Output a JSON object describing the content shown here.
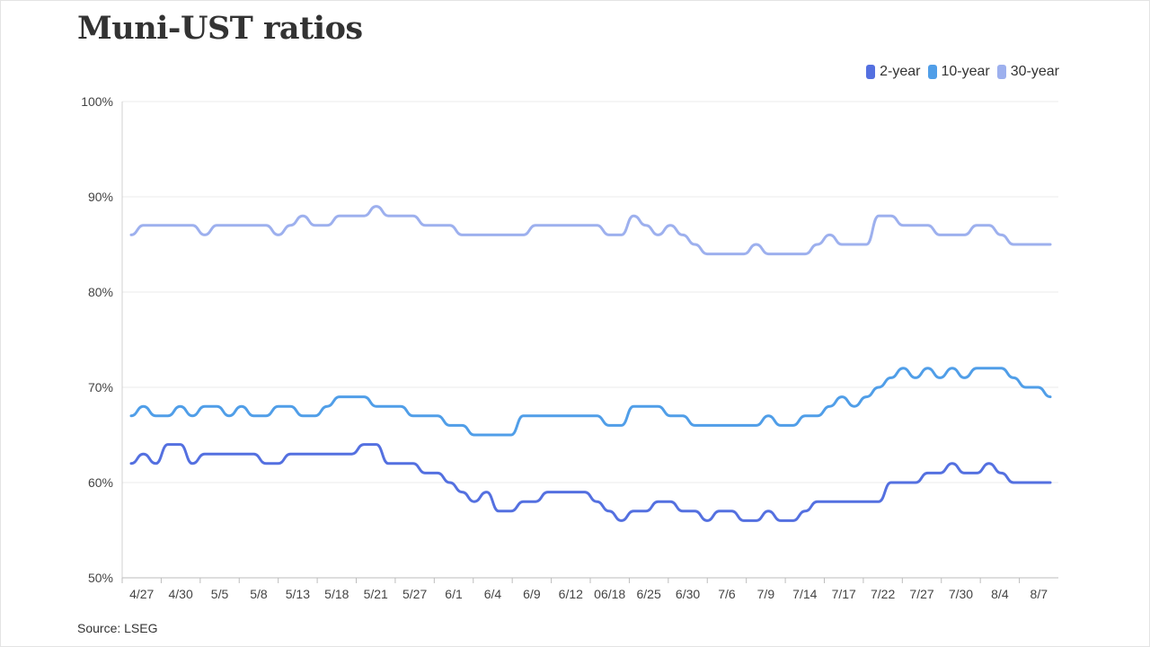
{
  "title": "Muni-UST ratios",
  "source": "Source: LSEG",
  "legend": [
    {
      "label": "2-year",
      "color": "#5470e0"
    },
    {
      "label": "10-year",
      "color": "#509ee8"
    },
    {
      "label": "30-year",
      "color": "#9db0ee"
    }
  ],
  "chart_data": {
    "type": "line",
    "grid": true,
    "legend_position": "top-right",
    "ylim": [
      50,
      100
    ],
    "y_ticks": [
      "100%",
      "90%",
      "80%",
      "70%",
      "60%",
      "50%"
    ],
    "x_tick_labels": [
      "4/27",
      "4/30",
      "5/5",
      "5/8",
      "5/13",
      "5/18",
      "5/21",
      "5/27",
      "6/1",
      "6/4",
      "6/9",
      "6/12",
      "06/18",
      "6/25",
      "6/30",
      "7/6",
      "7/9",
      "7/14",
      "7/17",
      "7/22",
      "7/27",
      "7/30",
      "8/4",
      "8/7"
    ],
    "series": [
      {
        "name": "2-year",
        "color": "#5470e0",
        "values": [
          62,
          63,
          62,
          64,
          64,
          62,
          63,
          63,
          63,
          63,
          63,
          62,
          62,
          63,
          63,
          63,
          63,
          63,
          63,
          64,
          64,
          62,
          62,
          62,
          61,
          61,
          60,
          59,
          58,
          59,
          57,
          57,
          58,
          58,
          59,
          59,
          59,
          59,
          58,
          57,
          56,
          57,
          57,
          58,
          58,
          57,
          57,
          56,
          57,
          57,
          56,
          56,
          57,
          56,
          56,
          57,
          58,
          58,
          58,
          58,
          58,
          58,
          60,
          60,
          60,
          61,
          61,
          62,
          61,
          61,
          62,
          61,
          60,
          60,
          60,
          60
        ]
      },
      {
        "name": "10-year",
        "color": "#509ee8",
        "values": [
          67,
          68,
          67,
          67,
          68,
          67,
          68,
          68,
          67,
          68,
          67,
          67,
          68,
          68,
          67,
          67,
          68,
          69,
          69,
          69,
          68,
          68,
          68,
          67,
          67,
          67,
          66,
          66,
          65,
          65,
          65,
          65,
          67,
          67,
          67,
          67,
          67,
          67,
          67,
          66,
          66,
          68,
          68,
          68,
          67,
          67,
          66,
          66,
          66,
          66,
          66,
          66,
          67,
          66,
          66,
          67,
          67,
          68,
          69,
          68,
          69,
          70,
          71,
          72,
          71,
          72,
          71,
          72,
          71,
          72,
          72,
          72,
          71,
          70,
          70,
          69
        ]
      },
      {
        "name": "30-year",
        "color": "#9db0ee",
        "values": [
          86,
          87,
          87,
          87,
          87,
          87,
          86,
          87,
          87,
          87,
          87,
          87,
          86,
          87,
          88,
          87,
          87,
          88,
          88,
          88,
          89,
          88,
          88,
          88,
          87,
          87,
          87,
          86,
          86,
          86,
          86,
          86,
          86,
          87,
          87,
          87,
          87,
          87,
          87,
          86,
          86,
          88,
          87,
          86,
          87,
          86,
          85,
          84,
          84,
          84,
          84,
          85,
          84,
          84,
          84,
          84,
          85,
          86,
          85,
          85,
          85,
          88,
          88,
          87,
          87,
          87,
          86,
          86,
          86,
          87,
          87,
          86,
          85,
          85,
          85,
          85
        ]
      }
    ]
  }
}
